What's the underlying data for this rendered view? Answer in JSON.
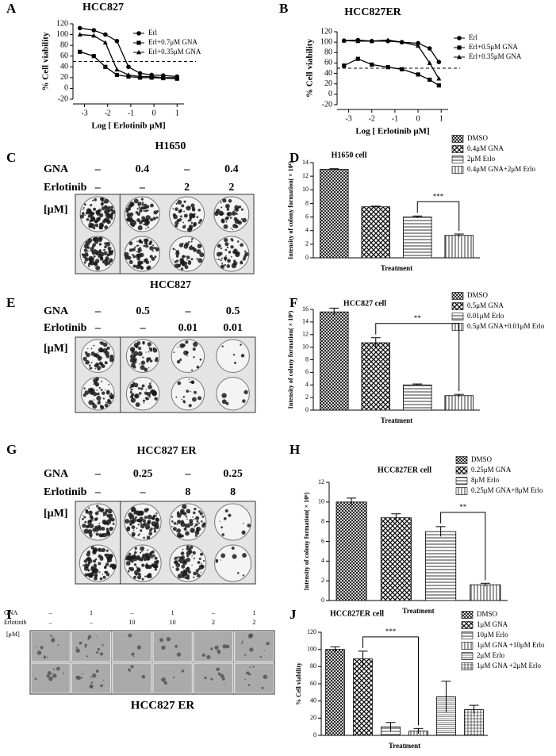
{
  "panel_labels": [
    "A",
    "B",
    "C",
    "D",
    "E",
    "F",
    "G",
    "H",
    "I",
    "J"
  ],
  "chart_data": [
    {
      "type": "line",
      "title": "HCC827",
      "x_label": "Log [ Erlotinib μM]",
      "y_label": "% Cell viability",
      "x": [
        -3.2,
        -2.6,
        -2.1,
        -1.6,
        -1.1,
        -0.6,
        -0.1,
        0.4,
        1.0
      ],
      "series": [
        {
          "name": "Erl",
          "marker": "circle",
          "color": "#000000",
          "values": [
            112,
            108,
            100,
            88,
            40,
            28,
            25,
            24,
            22
          ]
        },
        {
          "name": "Erl+0.7μM GNA",
          "marker": "square",
          "color": "#000000",
          "values": [
            68,
            60,
            40,
            25,
            22,
            20,
            20,
            19,
            18
          ]
        },
        {
          "name": "Erl+0.35μM GNA",
          "marker": "triangle",
          "color": "#000000",
          "values": [
            100,
            98,
            85,
            35,
            25,
            22,
            22,
            20,
            20
          ]
        }
      ],
      "xlim": [
        -3.5,
        1.3
      ],
      "xticks": [
        -3,
        -2,
        -1,
        0,
        1
      ],
      "ylim": [
        -20,
        120
      ],
      "yticks": [
        -20,
        0,
        20,
        40,
        60,
        80,
        100,
        120
      ],
      "reference_line": 50
    },
    {
      "type": "line",
      "title": "HCC827ER",
      "x_label": "Log [ Erlotinib μM]",
      "y_label": "% Cell viability",
      "x": [
        -3.2,
        -2.6,
        -2.0,
        -1.3,
        -0.7,
        0.0,
        0.5,
        0.9
      ],
      "series": [
        {
          "name": "Erl",
          "marker": "circle",
          "color": "#000000",
          "values": [
            103,
            104,
            102,
            102,
            100,
            98,
            88,
            62
          ]
        },
        {
          "name": "Erl+0.5μM GNA",
          "marker": "square",
          "color": "#000000",
          "values": [
            55,
            68,
            57,
            52,
            48,
            38,
            28,
            17
          ]
        },
        {
          "name": "Erl+0.35μM GNA",
          "marker": "triangle",
          "color": "#000000",
          "values": [
            103,
            102,
            102,
            104,
            100,
            93,
            60,
            30
          ]
        }
      ],
      "xlim": [
        -3.5,
        1.3
      ],
      "xticks": [
        -3,
        -2,
        -1,
        0,
        1
      ],
      "ylim": [
        -20,
        120
      ],
      "yticks": [
        -20,
        0,
        20,
        40,
        60,
        80,
        100,
        120
      ],
      "reference_line": 50
    },
    {
      "type": "bar",
      "title": "H1650 cell",
      "x_label": "Treatment",
      "y_label": "Intensity of colony formation( × 10⁶)",
      "categories": [
        "DMSO",
        "0.4μM GNA",
        "2μM Erlo",
        "0.4μM GNA+2μM Erlo"
      ],
      "values": [
        13,
        7.5,
        6,
        3.3
      ],
      "errors": [
        0.1,
        0.1,
        0.15,
        0.2
      ],
      "ylim": [
        0,
        14
      ],
      "yticks": [
        0,
        2,
        4,
        6,
        8,
        10,
        12,
        14
      ],
      "significance": "***",
      "bracket": [
        2,
        3
      ]
    },
    {
      "type": "bar",
      "title": "HCC827 cell",
      "x_label": "Treatment",
      "y_label": "Intensity of colony formation( × 10⁶)",
      "categories": [
        "DMSO",
        "0.5μM GNA",
        "0.01μM Erlo",
        "0.5μM GNA+0.01μM Erlo"
      ],
      "values": [
        15.6,
        10.7,
        4.0,
        2.3
      ],
      "errors": [
        0.6,
        0.8,
        0.15,
        0.2
      ],
      "ylim": [
        0,
        16
      ],
      "yticks": [
        0,
        2,
        4,
        6,
        8,
        10,
        12,
        14,
        16
      ],
      "significance": "**",
      "bracket": [
        1,
        3
      ]
    },
    {
      "type": "bar",
      "title": "HCC827ER cell",
      "x_label": "Treatment",
      "y_label": "Intensity of colony formation( × 10⁶)",
      "categories": [
        "DMSO",
        "0.25μM GNA",
        "8μM Erlo",
        "0.25μM GNA+8μM Erlo"
      ],
      "values": [
        10.0,
        8.4,
        7.0,
        1.6
      ],
      "errors": [
        0.4,
        0.4,
        0.5,
        0.15
      ],
      "ylim": [
        0,
        12
      ],
      "yticks": [
        0,
        2,
        4,
        6,
        8,
        10,
        12
      ],
      "significance": "**",
      "bracket": [
        2,
        3
      ]
    },
    {
      "type": "bar",
      "title": "HCC827ER cell",
      "x_label": "Treatment",
      "y_label": "% Cell viability",
      "categories": [
        "DMSO",
        "1μM GNA",
        "10μM Erlo",
        "1μM GNA +10μM Erlo",
        "2μM Erlo",
        "1μM GNA +2μM Erlo"
      ],
      "values": [
        100,
        89,
        10,
        5,
        45,
        30
      ],
      "errors": [
        3,
        9,
        5,
        3,
        18,
        5
      ],
      "ylim": [
        0,
        120
      ],
      "yticks": [
        0,
        20,
        40,
        60,
        80,
        100,
        120
      ],
      "significance": "***",
      "bracket": [
        1,
        3
      ]
    }
  ],
  "images": [
    {
      "title": "H1650",
      "rows": [
        {
          "label": "GNA",
          "values": [
            "–",
            "0.4",
            "–",
            "0.4"
          ]
        },
        {
          "label": "Erlotinib",
          "values": [
            "–",
            "–",
            "2",
            "2"
          ]
        }
      ],
      "unit": "[μM]"
    },
    {
      "title": "HCC827",
      "rows": [
        {
          "label": "GNA",
          "values": [
            "–",
            "0.5",
            "–",
            "0.5"
          ]
        },
        {
          "label": "Erlotinib",
          "values": [
            "–",
            "–",
            "0.01",
            "0.01"
          ]
        }
      ],
      "unit": "[μM]"
    },
    {
      "title": "HCC827 ER",
      "rows": [
        {
          "label": "GNA",
          "values": [
            "–",
            "0.25",
            "–",
            "0.25"
          ]
        },
        {
          "label": "Erlotinib",
          "values": [
            "–",
            "–",
            "8",
            "8"
          ]
        }
      ],
      "unit": "[μM]"
    },
    {
      "title": "HCC827 ER",
      "rows": [
        {
          "label": "GNA",
          "values": [
            "–",
            "1",
            "–",
            "1",
            "–",
            "1"
          ]
        },
        {
          "label": "Erlotinib",
          "values": [
            "–",
            "–",
            "10",
            "10",
            "2",
            "2"
          ]
        }
      ],
      "unit": "[μM]"
    }
  ]
}
